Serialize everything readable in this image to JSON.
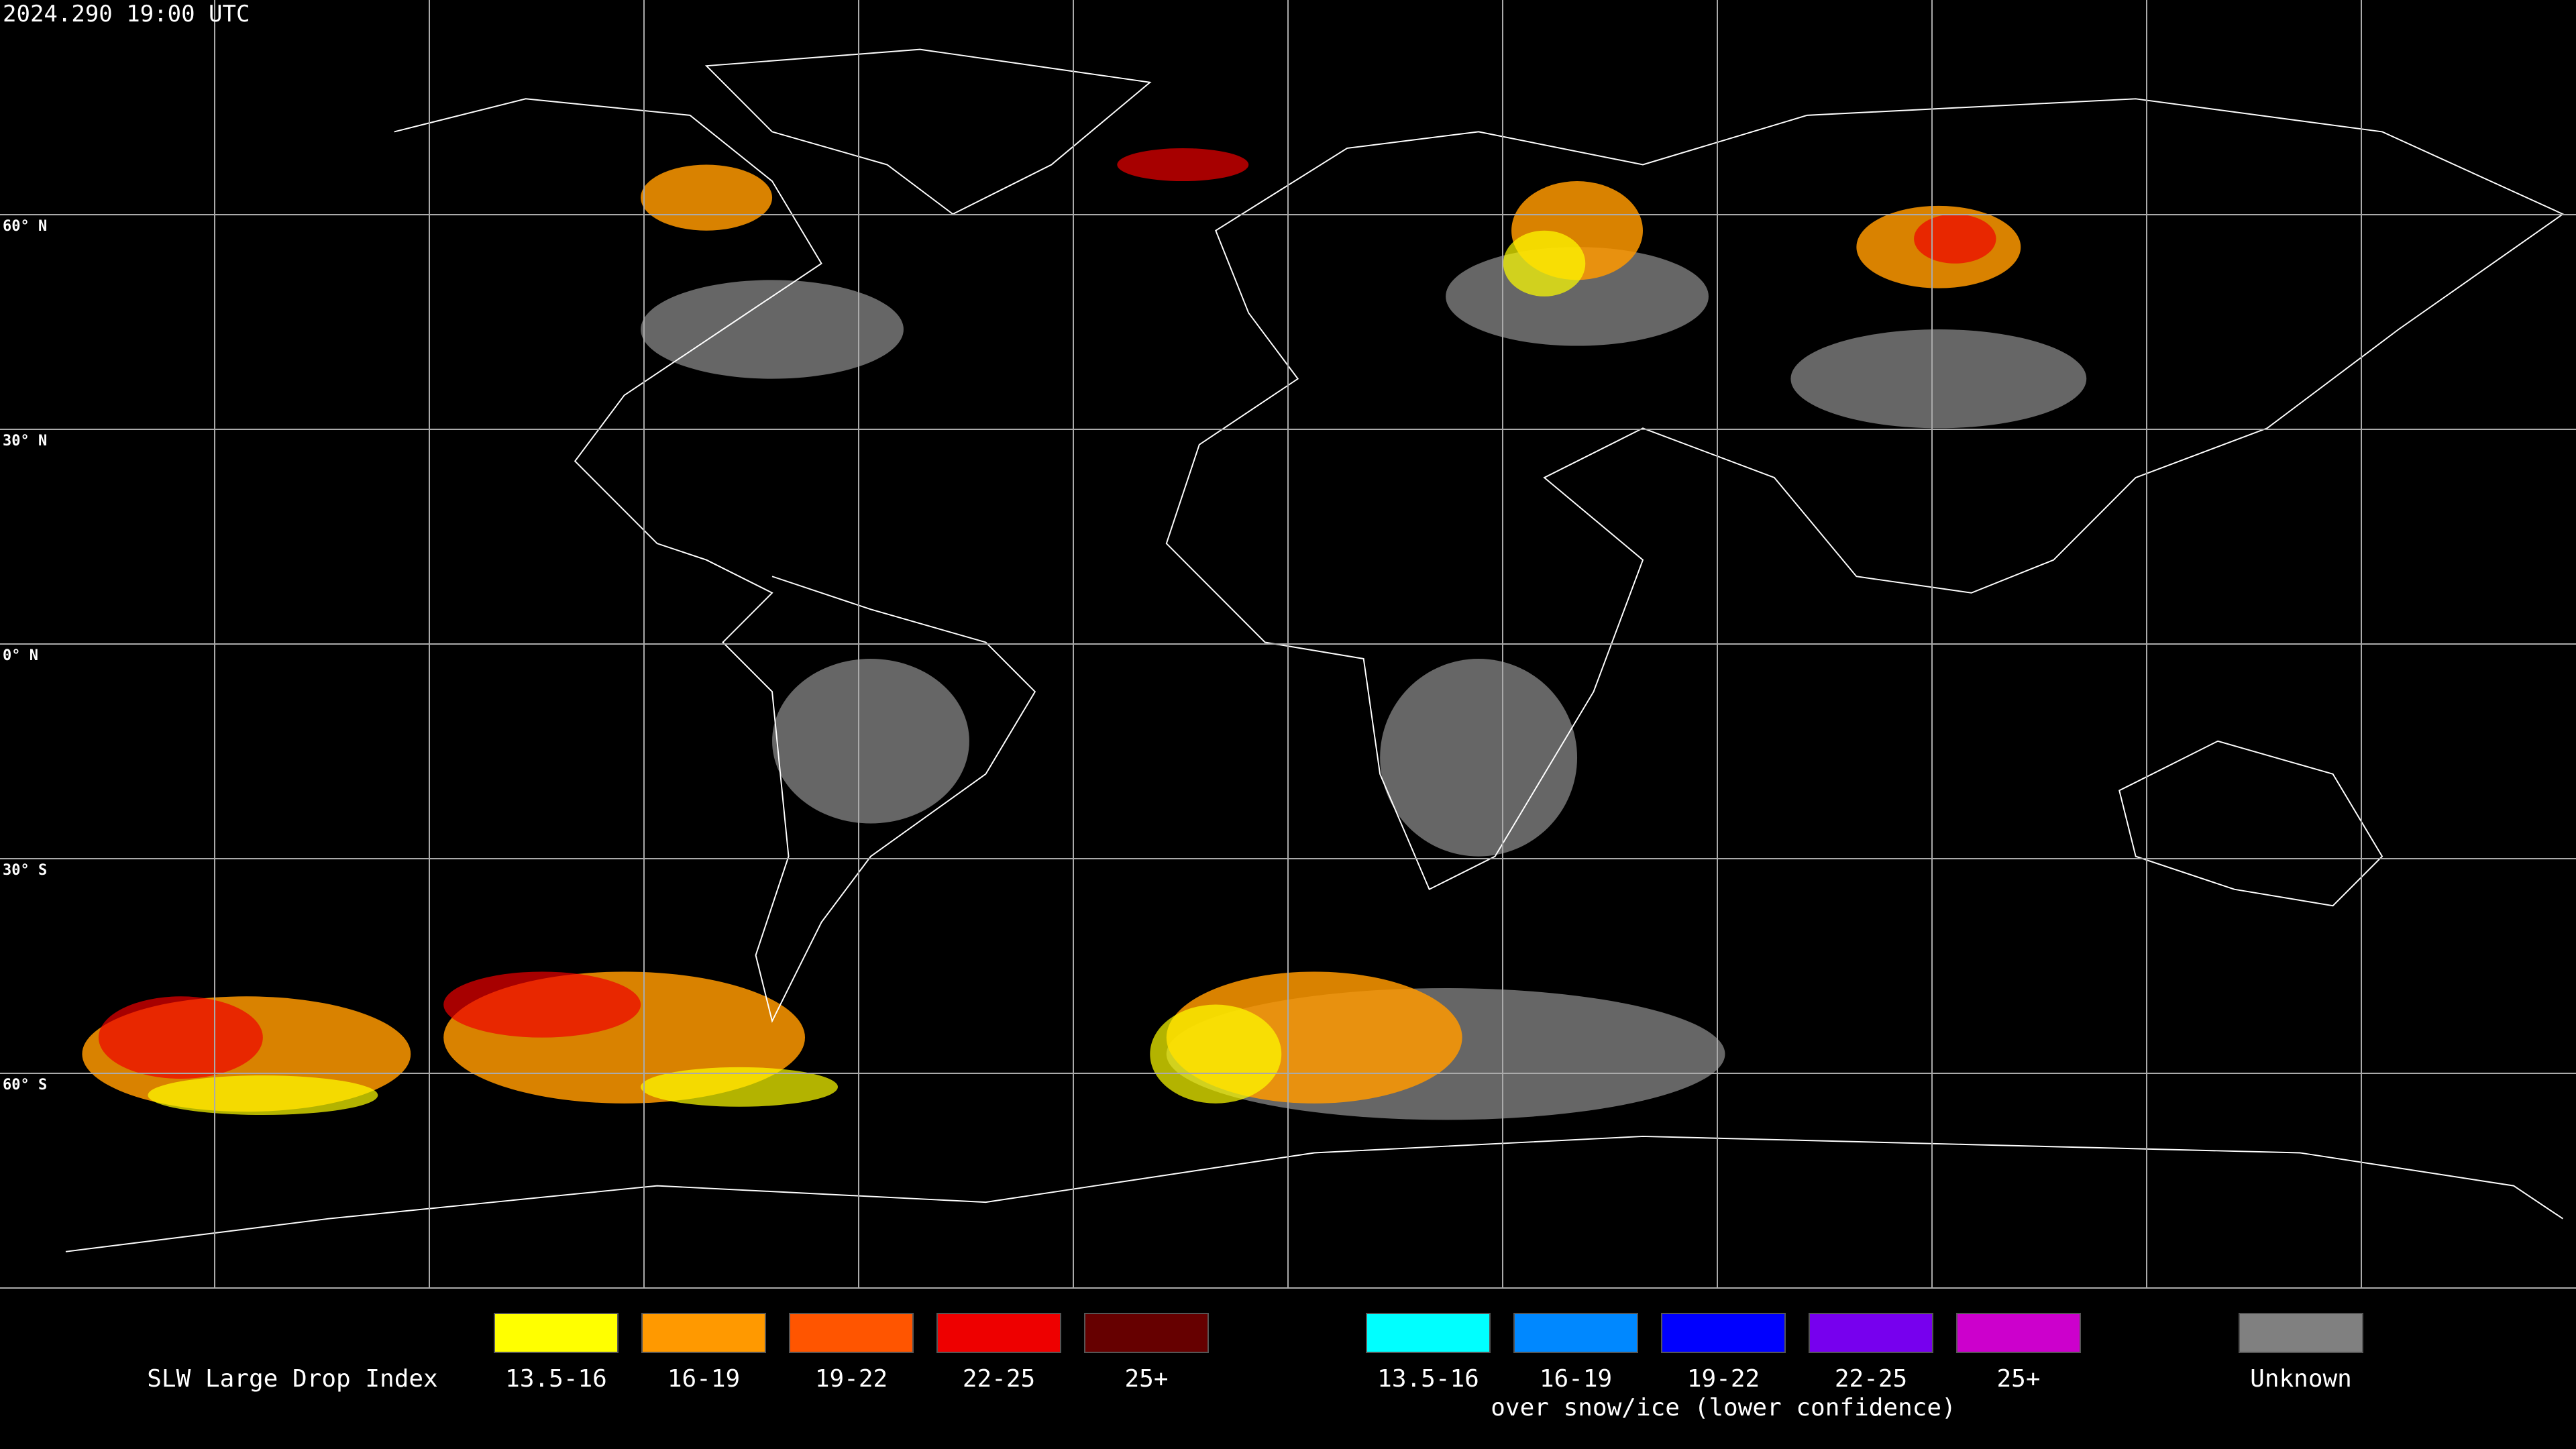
{
  "header": {
    "timestamp": "2024.290 19:00 UTC"
  },
  "map": {
    "lat_labels": [
      "60° N",
      "30° N",
      "0° N",
      "30° S",
      "60° S"
    ]
  },
  "legend": {
    "title": "SLW Large Drop Index",
    "groups": [
      {
        "items": [
          {
            "label": "13.5-16",
            "color": "#ffff00"
          },
          {
            "label": "16-19",
            "color": "#ff9900"
          },
          {
            "label": "19-22",
            "color": "#ff5500"
          },
          {
            "label": "22-25",
            "color": "#ee0000"
          },
          {
            "label": "25+",
            "color": "#660000"
          }
        ]
      },
      {
        "items": [
          {
            "label": "13.5-16",
            "color": "#00ffff"
          },
          {
            "label": "16-19",
            "color": "#0088ff"
          },
          {
            "label": "19-22",
            "color": "#0000ff"
          },
          {
            "label": "22-25",
            "color": "#7700ee"
          },
          {
            "label": "25+",
            "color": "#cc00cc"
          }
        ],
        "caption": "over snow/ice (lower confidence)"
      },
      {
        "items": [
          {
            "label": "Unknown",
            "color": "#808080"
          }
        ]
      }
    ]
  }
}
